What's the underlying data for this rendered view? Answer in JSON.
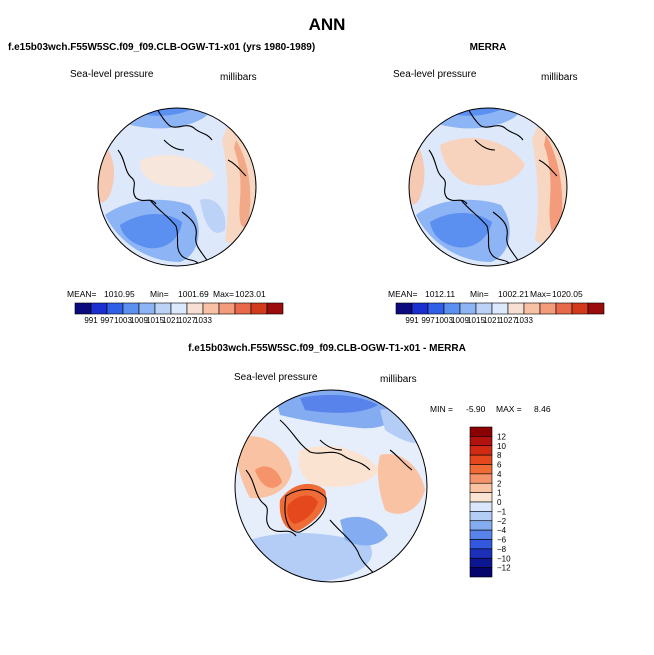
{
  "main_title": "ANN",
  "chart_data": [
    {
      "type": "heatmap",
      "projection": "polar-stereographic-north",
      "title": "f.e15b03wch.F55W5SC.f09_f09.CLB-OGW-T1-x01 (yrs 1980-1989)",
      "variable_label": "Sea-level pressure",
      "units_label": "millibars",
      "stats": {
        "mean_label": "MEAN=",
        "mean": "1010.95",
        "min_label": "Min=",
        "min": "1001.69",
        "max_label": "Max=",
        "max": "1023.01"
      },
      "colorbar": {
        "orientation": "horizontal",
        "levels": [
          "991",
          "997",
          "1003",
          "1009",
          "1015",
          "1021",
          "1027",
          "1033"
        ],
        "colors": [
          "#0b0b7e",
          "#1b2fd0",
          "#2f5fe6",
          "#5b8ff0",
          "#8db4f4",
          "#bcd3f7",
          "#dce8fb",
          "#f6e0d3",
          "#f7c1a5",
          "#f39b7a",
          "#e8694a",
          "#d23a1c",
          "#9b0d0d"
        ]
      }
    },
    {
      "type": "heatmap",
      "projection": "polar-stereographic-north",
      "title": "MERRA",
      "variable_label": "Sea-level pressure",
      "units_label": "millibars",
      "stats": {
        "mean_label": "MEAN=",
        "mean": "1012.11",
        "min_label": "Min=",
        "min": "1002.21",
        "max_label": "Max=",
        "max": "1020.05"
      },
      "colorbar": {
        "orientation": "horizontal",
        "levels": [
          "991",
          "997",
          "1003",
          "1009",
          "1015",
          "1021",
          "1027",
          "1033"
        ],
        "colors": [
          "#0b0b7e",
          "#1b2fd0",
          "#2f5fe6",
          "#5b8ff0",
          "#8db4f4",
          "#bcd3f7",
          "#dce8fb",
          "#f6e0d3",
          "#f7c1a5",
          "#f39b7a",
          "#e8694a",
          "#d23a1c",
          "#9b0d0d"
        ]
      }
    },
    {
      "type": "heatmap",
      "projection": "polar-stereographic-north",
      "title": "f.e15b03wch.F55W5SC.f09_f09.CLB-OGW-T1-x01 - MERRA",
      "variable_label": "Sea-level pressure",
      "units_label": "millibars",
      "stats": {
        "min_label": "MIN =",
        "min": "-5.90",
        "max_label": "MAX =",
        "max": "8.46"
      },
      "colorbar": {
        "orientation": "vertical",
        "levels": [
          "12",
          "10",
          "8",
          "6",
          "4",
          "2",
          "1",
          "0",
          "−1",
          "−2",
          "−4",
          "−6",
          "−8",
          "−10",
          "−12"
        ],
        "colors": [
          "#8b0000",
          "#b2120d",
          "#d02b12",
          "#e5481c",
          "#ef6c37",
          "#f5946a",
          "#f9c3a3",
          "#fbe3d2",
          "#d9e6fb",
          "#b3cdf7",
          "#84acf1",
          "#5783ea",
          "#3258de",
          "#1b2fb8",
          "#0c1690",
          "#04046c"
        ]
      }
    }
  ]
}
